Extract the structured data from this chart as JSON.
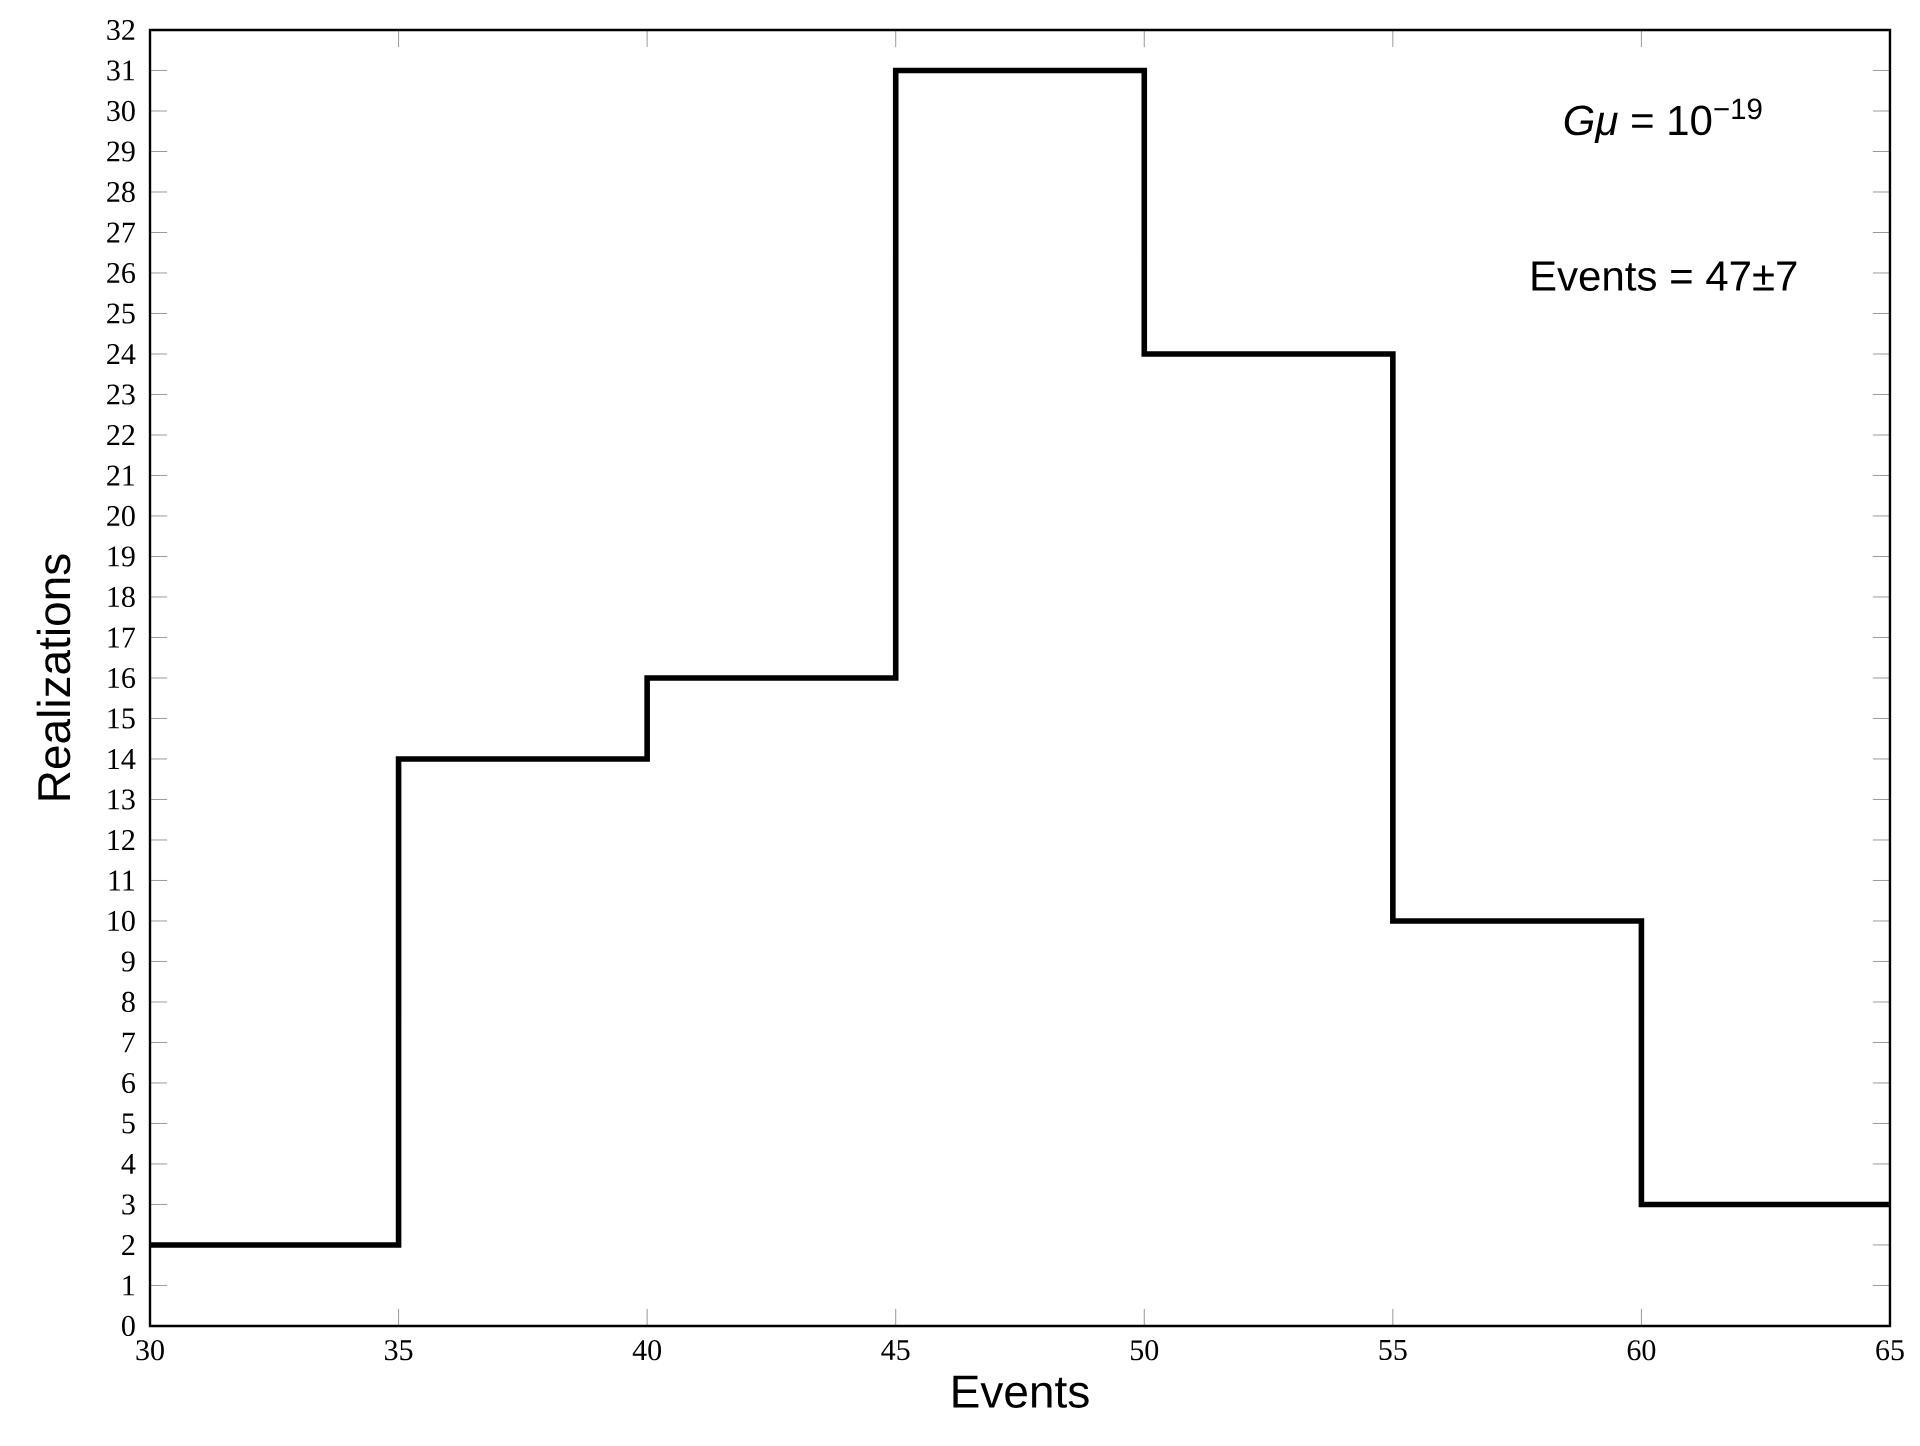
{
  "chart_data": {
    "type": "histogram",
    "xlabel": "Events",
    "ylabel": "Realizations",
    "bins": [
      30,
      35,
      40,
      45,
      50,
      55,
      60,
      65
    ],
    "values": [
      2,
      14,
      16,
      31,
      24,
      10,
      3
    ],
    "color": "#000000",
    "xlim": [
      30,
      65
    ],
    "xticks": [
      30,
      35,
      40,
      45,
      50,
      55,
      60,
      65
    ],
    "ylim": [
      0,
      32
    ],
    "yticks": [
      0,
      1,
      2,
      3,
      4,
      5,
      6,
      7,
      8,
      9,
      10,
      11,
      12,
      13,
      14,
      15,
      16,
      17,
      18,
      19,
      20,
      21,
      22,
      23,
      24,
      25,
      26,
      27,
      28,
      29,
      30,
      31,
      32
    ],
    "grid": false,
    "annotations": [
      "*Gμ* = 10$^{−19}$",
      "Events = 47±7"
    ]
  }
}
